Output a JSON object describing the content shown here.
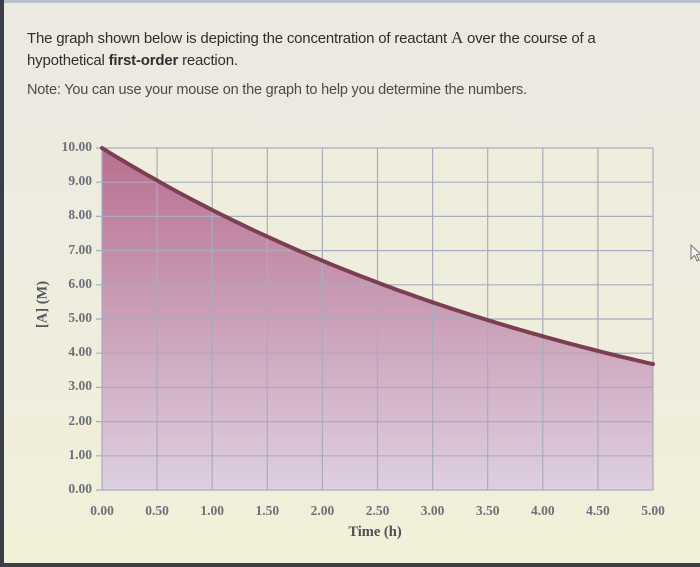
{
  "question": {
    "text_before_A": "The graph shown below is depicting the concentration of reactant ",
    "reactant": "A",
    "text_after_A": " over the course of a hypothetical ",
    "bold_text": "first-order",
    "text_end": " reaction.",
    "note": "Note: You can use your mouse on the graph to help you determine the numbers."
  },
  "chart_data": {
    "type": "area",
    "title": "",
    "xlabel": "Time (h)",
    "ylabel": "[A] (M)",
    "x_ticks": [
      "0.00",
      "0.50",
      "1.00",
      "1.50",
      "2.00",
      "2.50",
      "3.00",
      "3.50",
      "4.00",
      "4.50",
      "5.00"
    ],
    "y_ticks": [
      "0.00",
      "1.00",
      "2.00",
      "3.00",
      "4.00",
      "5.00",
      "6.00",
      "7.00",
      "8.00",
      "9.00",
      "10.00"
    ],
    "xlim": [
      0,
      5
    ],
    "ylim": [
      0,
      10
    ],
    "grid": true,
    "legend": "none",
    "x": [
      0.0,
      0.5,
      1.0,
      1.5,
      2.0,
      2.5,
      3.0,
      3.5,
      4.0,
      4.5,
      5.0
    ],
    "series": [
      {
        "name": "[A]",
        "values": [
          10.0,
          9.05,
          8.19,
          7.41,
          6.7,
          6.07,
          5.49,
          4.97,
          4.49,
          4.07,
          3.68
        ]
      }
    ],
    "model": "first-order exponential decay, [A]0 = 10.00 M, k ≈ 0.20 h^-1",
    "colors": {
      "fill_top": "#b9708f",
      "fill_bottom": "#ddd0e0",
      "line": "#7b3f52",
      "grid": "#a9abc0",
      "background": "#efeedd"
    }
  }
}
